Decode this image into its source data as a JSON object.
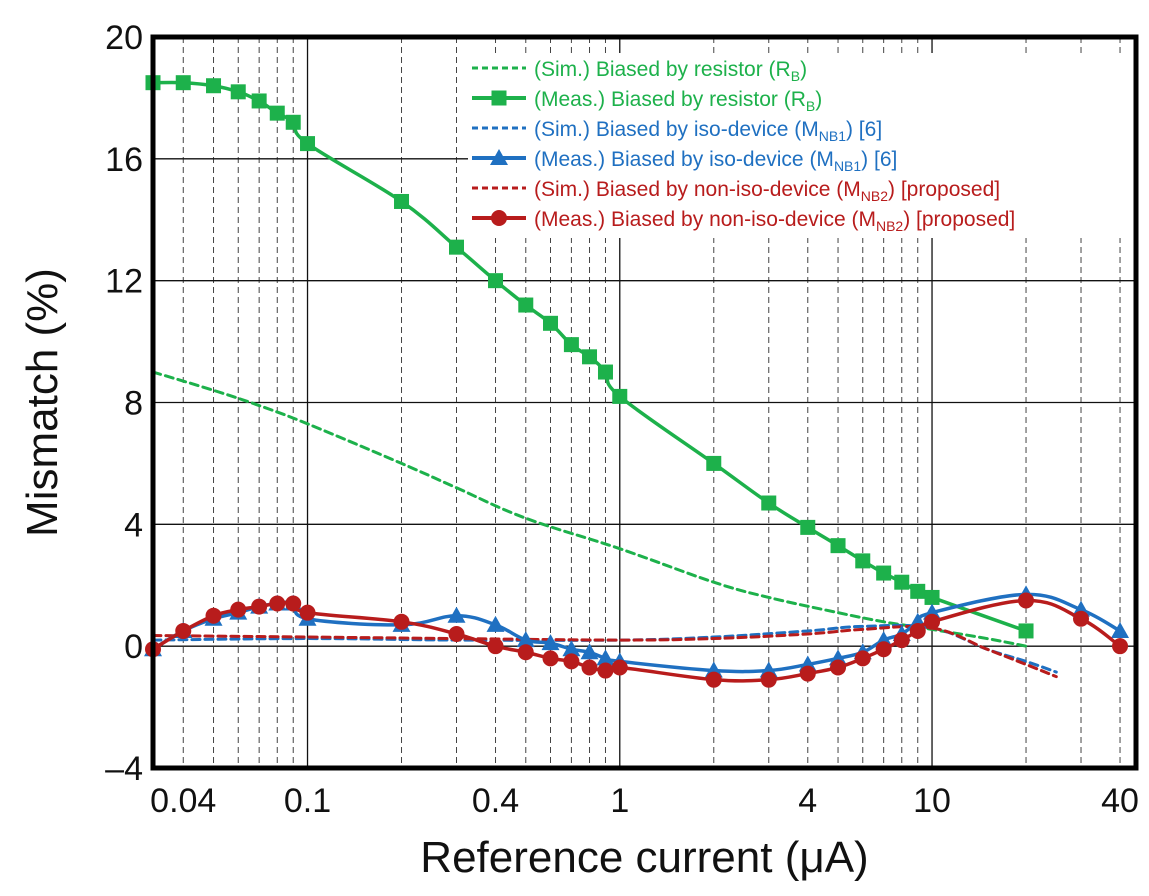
{
  "chart_data": {
    "type": "line",
    "title": "",
    "xlabel": "Reference current (μA)",
    "ylabel": "Mismatch (%)",
    "xscale": "log",
    "xlim": [
      0.032,
      45
    ],
    "ylim": [
      -4,
      20
    ],
    "x_ticks": [
      0.04,
      0.1,
      0.4,
      1,
      4,
      10,
      40
    ],
    "x_tick_labels": [
      "0.04",
      "0.1",
      "0.4",
      "1",
      "4",
      "10",
      "40"
    ],
    "y_ticks": [
      -4,
      0,
      4,
      8,
      12,
      16,
      20
    ],
    "y_tick_labels": [
      "–4",
      "0",
      "4",
      "8",
      "12",
      "16",
      "20"
    ],
    "grid": "major solid, minor dashed vertical",
    "legend_position": "top-right",
    "series": [
      {
        "name": "(Sim.) Biased by resistor (RB)",
        "legend": {
          "pre": "(Sim.) Biased by resistor (R",
          "sub": "B",
          "post": ")"
        },
        "color": "#1db14b",
        "style": "dashed",
        "marker": "none",
        "x": [
          0.032,
          0.05,
          0.07,
          0.1,
          0.2,
          0.3,
          0.5,
          1,
          2,
          3,
          5,
          7,
          10,
          15,
          20
        ],
        "y": [
          9.0,
          8.4,
          7.9,
          7.3,
          6.0,
          5.2,
          4.2,
          3.2,
          2.1,
          1.6,
          1.1,
          0.8,
          0.55,
          0.25,
          0.0
        ]
      },
      {
        "name": "(Meas.) Biased by resistor (RB)",
        "legend": {
          "pre": "(Meas.) Biased by resistor (R",
          "sub": "B",
          "post": ")"
        },
        "color": "#1db14b",
        "style": "solid",
        "marker": "square",
        "x": [
          0.032,
          0.04,
          0.05,
          0.06,
          0.07,
          0.08,
          0.09,
          0.1,
          0.2,
          0.3,
          0.4,
          0.5,
          0.6,
          0.7,
          0.8,
          0.9,
          1,
          2,
          3,
          4,
          5,
          6,
          7,
          8,
          9,
          10,
          20
        ],
        "y": [
          18.5,
          18.5,
          18.4,
          18.2,
          17.9,
          17.5,
          17.2,
          16.5,
          14.6,
          13.1,
          12.0,
          11.2,
          10.6,
          9.9,
          9.5,
          9.0,
          8.2,
          6.0,
          4.7,
          3.9,
          3.3,
          2.8,
          2.4,
          2.1,
          1.8,
          1.6,
          0.5
        ]
      },
      {
        "name": "(Sim.) Biased by iso-device (MNB1) [6]",
        "legend": {
          "pre": "(Sim.) Biased by iso-device (M",
          "sub": "NB1",
          "post": ") [6]"
        },
        "color": "#1f70c1",
        "style": "dashed",
        "marker": "none",
        "x": [
          0.032,
          0.1,
          0.3,
          1,
          2,
          4,
          6,
          10,
          15,
          20,
          25
        ],
        "y": [
          0.2,
          0.25,
          0.2,
          0.2,
          0.3,
          0.5,
          0.65,
          0.6,
          -0.1,
          -0.5,
          -0.85
        ]
      },
      {
        "name": "(Meas.) Biased by iso-device (MNB1) [6]",
        "legend": {
          "pre": "(Meas.) Biased by iso-device (M",
          "sub": "NB1",
          "post": ") [6]"
        },
        "color": "#1f70c1",
        "style": "solid",
        "marker": "triangle",
        "x": [
          0.032,
          0.04,
          0.05,
          0.06,
          0.07,
          0.08,
          0.09,
          0.1,
          0.2,
          0.3,
          0.4,
          0.5,
          0.6,
          0.7,
          0.8,
          0.9,
          1,
          2,
          3,
          4,
          5,
          6,
          7,
          8,
          9,
          10,
          20,
          30,
          40
        ],
        "y": [
          -0.1,
          0.5,
          0.9,
          1.1,
          1.3,
          1.4,
          1.4,
          0.9,
          0.7,
          1.0,
          0.7,
          0.2,
          0.1,
          -0.1,
          -0.2,
          -0.4,
          -0.5,
          -0.8,
          -0.8,
          -0.6,
          -0.4,
          -0.2,
          0.2,
          0.4,
          0.8,
          1.1,
          1.7,
          1.2,
          0.5
        ]
      },
      {
        "name": "(Sim.) Biased by non-iso-device (MNB2) [proposed]",
        "legend": {
          "pre": "(Sim.) Biased by non-iso-device (M",
          "sub": "NB2",
          "post": ") [proposed]"
        },
        "color": "#b81c1c",
        "style": "dashed",
        "marker": "none",
        "x": [
          0.032,
          0.1,
          0.3,
          1,
          2,
          4,
          6,
          10,
          15,
          20,
          25
        ],
        "y": [
          0.35,
          0.3,
          0.25,
          0.2,
          0.25,
          0.4,
          0.55,
          0.6,
          -0.1,
          -0.6,
          -1.0
        ]
      },
      {
        "name": "(Meas.) Biased by non-iso-device (MNB2) [proposed]",
        "legend": {
          "pre": "(Meas.) Biased by non-iso-device (M",
          "sub": "NB2",
          "post": ") [proposed]"
        },
        "color": "#b81c1c",
        "style": "solid",
        "marker": "circle",
        "x": [
          0.032,
          0.04,
          0.05,
          0.06,
          0.07,
          0.08,
          0.09,
          0.1,
          0.2,
          0.3,
          0.4,
          0.5,
          0.6,
          0.7,
          0.8,
          0.9,
          1,
          2,
          3,
          4,
          5,
          6,
          7,
          8,
          9,
          10,
          20,
          30,
          40
        ],
        "y": [
          -0.1,
          0.5,
          1.0,
          1.2,
          1.3,
          1.4,
          1.4,
          1.1,
          0.8,
          0.4,
          0.0,
          -0.2,
          -0.4,
          -0.5,
          -0.7,
          -0.8,
          -0.7,
          -1.1,
          -1.1,
          -0.9,
          -0.7,
          -0.4,
          -0.1,
          0.2,
          0.5,
          0.8,
          1.5,
          0.9,
          0.0
        ]
      }
    ]
  }
}
